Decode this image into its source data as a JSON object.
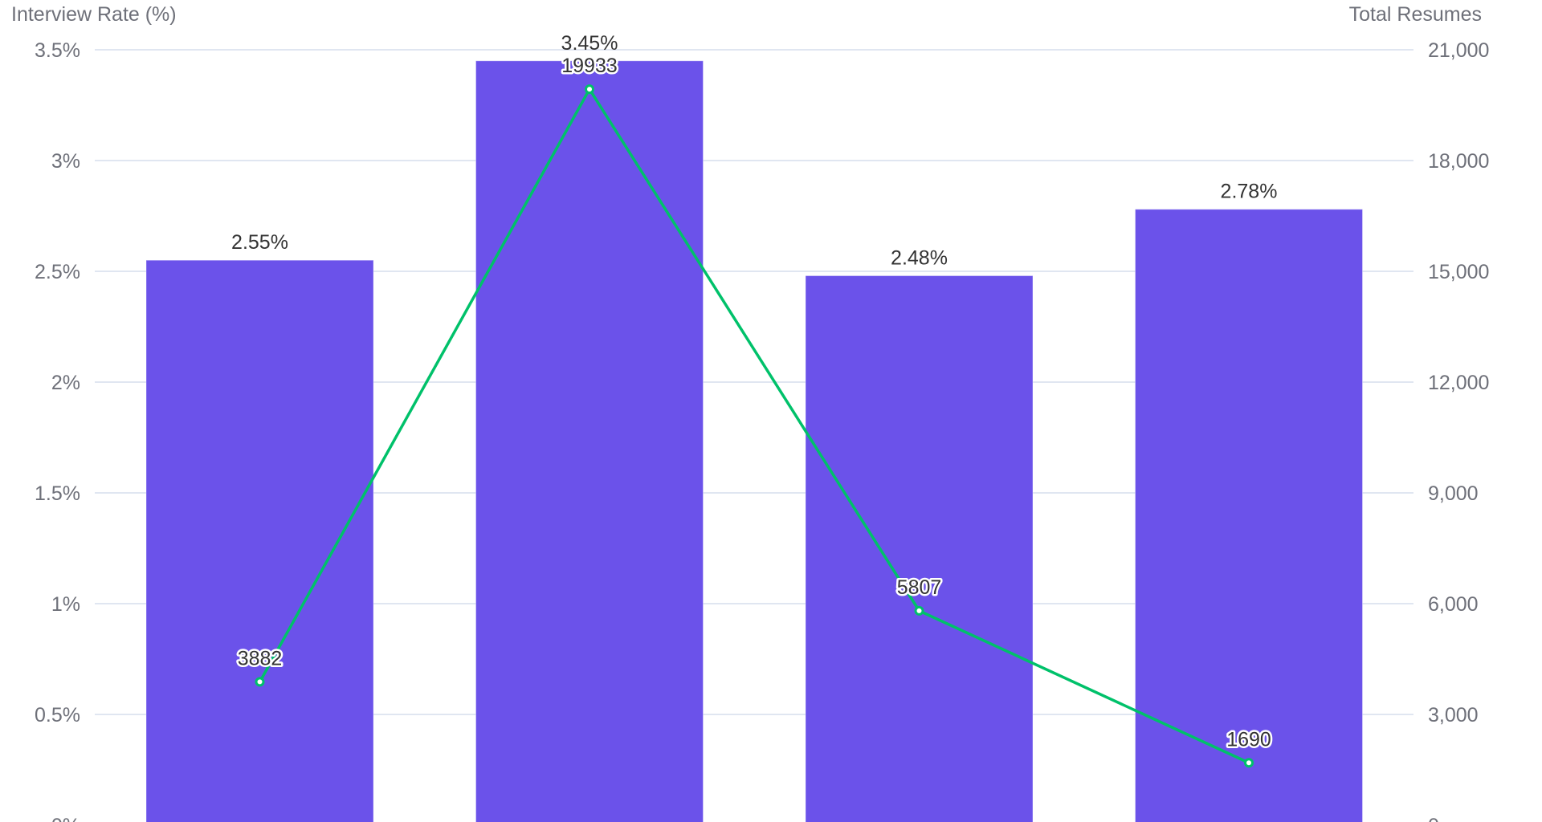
{
  "chart_data": {
    "type": "bar+line",
    "title": "",
    "categories": [
      "",
      "",
      "",
      ""
    ],
    "series": [
      {
        "name": "Interview Rate (%)",
        "type": "bar",
        "axis": "left",
        "values": [
          2.55,
          3.45,
          2.48,
          2.78
        ],
        "labels": [
          "2.55%",
          "3.45%",
          "2.48%",
          "2.78%"
        ],
        "color": "#6b52ea"
      },
      {
        "name": "Total Resumes",
        "type": "line",
        "axis": "right",
        "values": [
          3882,
          19933,
          5807,
          1690
        ],
        "labels": [
          "3882",
          "19933",
          "5807",
          "1690"
        ],
        "color": "#00c16a"
      }
    ],
    "left_axis": {
      "label": "Interview Rate (%)",
      "ylim": [
        0,
        3.5
      ],
      "ticks": [
        "0%",
        "0.5%",
        "1%",
        "1.5%",
        "2%",
        "2.5%",
        "3%",
        "3.5%"
      ]
    },
    "right_axis": {
      "label": "Total Resumes",
      "ylim": [
        0,
        21000
      ],
      "ticks": [
        "0",
        "3,000",
        "6,000",
        "9,000",
        "12,000",
        "15,000",
        "18,000",
        "21,000"
      ]
    },
    "grid": true,
    "legend": "none"
  },
  "colors": {
    "bar": "#6b52ea",
    "line": "#00c16a",
    "grid": "#e0e6f1",
    "axis_text": "#6e7079",
    "label_text": "#333333"
  }
}
